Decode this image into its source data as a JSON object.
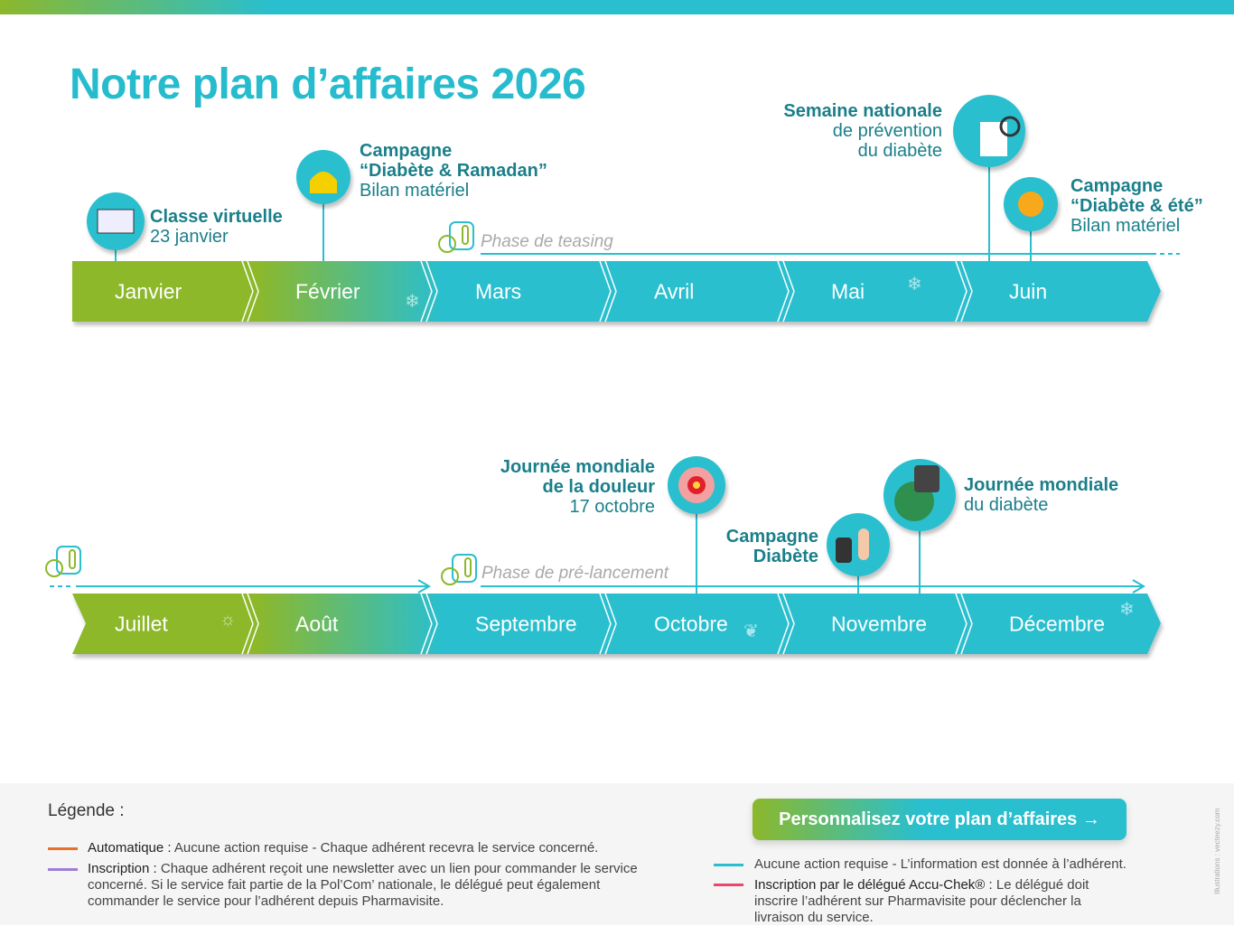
{
  "title": "Notre plan d’affaires 2026",
  "months_row1": [
    "Janvier",
    "Février",
    "Mars",
    "Avril",
    "Mai",
    "Juin"
  ],
  "months_row2": [
    "Juillet",
    "Août",
    "Septembre",
    "Octobre",
    "Novembre",
    "Décembre"
  ],
  "events": {
    "classe": {
      "title": "Classe virtuelle",
      "sub": "23 janvier"
    },
    "ramadan": {
      "title1": "Campagne",
      "title2": "“Diabète & Ramadan”",
      "sub": "Bilan matériel"
    },
    "semaine": {
      "title": "Semaine nationale",
      "sub1": "de prévention",
      "sub2": "du diabète"
    },
    "ete": {
      "title1": "Campagne",
      "title2": "“Diabète & été”",
      "sub": "Bilan matériel"
    },
    "douleur": {
      "title1": "Journée mondiale",
      "title2": "de la douleur",
      "sub": "17 octobre"
    },
    "campagne_diabete": {
      "title1": "Campagne",
      "title2": "Diabète"
    },
    "mondiale_diabete": {
      "title": "Journée mondiale",
      "sub": "du diabète"
    }
  },
  "phases": {
    "teasing": "Phase de teasing",
    "prelancement": "Phase de pré-lancement"
  },
  "legend": {
    "title": "Légende :",
    "auto_label": "Automatique :",
    "auto_text": " Aucune action requise - Chaque adhérent recevra le service concerné.",
    "insc_label": "Inscription :",
    "insc_text": " Chaque adhérent reçoit une newsletter avec un lien pour commander le service concerné. Si le service fait partie de la Pol’Com’ nationale, le délégué peut également commander le service pour l’adhérent depuis Pharmavisite.",
    "info_text": "Aucune action requise - L’information est donnée à l’adhérent.",
    "deleg_label": "Inscription par le délégué Accu-Chek® :",
    "deleg_text": " Le délégué doit inscrire l’adhérent sur Pharmavisite pour déclencher la livraison du service.",
    "colors": {
      "auto": "#e8702a",
      "inscription": "#9b7fd4",
      "info": "#29bfcf",
      "delegue": "#e8476e"
    }
  },
  "cta": "Personnalisez votre plan d’affaires →",
  "credit": "Illustrations : vecteezy.com",
  "colors": {
    "green": "#8cb82b",
    "cyan": "#29bfcf",
    "teal_text": "#1a7f8a"
  }
}
